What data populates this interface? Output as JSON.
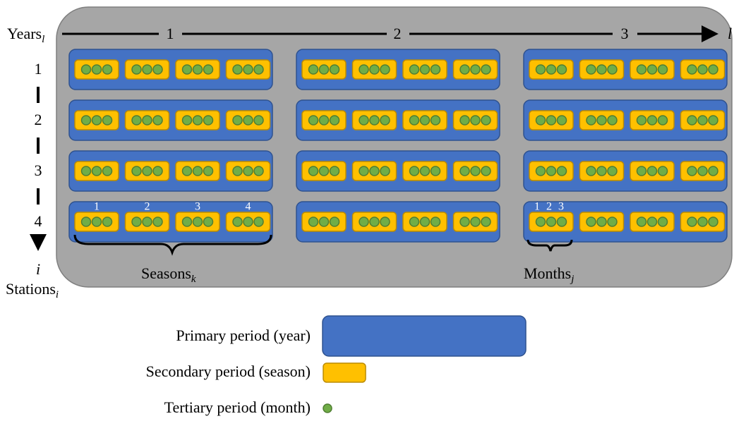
{
  "axes": {
    "years": {
      "label": "Years",
      "sub": "l",
      "ticks": [
        "1",
        "2",
        "3"
      ],
      "end": "l"
    },
    "stations": {
      "label": "Stations",
      "sub": "i",
      "ticks": [
        "1",
        "2",
        "3",
        "4"
      ],
      "end": "i"
    }
  },
  "annotations": {
    "seasons": {
      "label": "Seasons",
      "sub": "k",
      "numbers": [
        "1",
        "2",
        "3",
        "4"
      ]
    },
    "months": {
      "label": "Months",
      "sub": "j",
      "numbers": [
        "1",
        "2",
        "3"
      ]
    }
  },
  "legend": [
    "Primary period (year)",
    "Secondary period (season)",
    "Tertiary period (month)"
  ]
}
